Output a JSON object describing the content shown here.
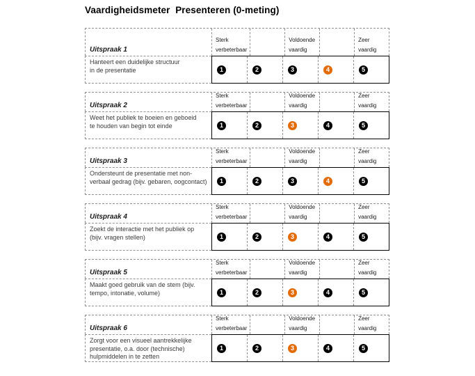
{
  "title": "Vaardigheidsmeter  Presenteren (0-meting)",
  "scale": {
    "headers": [
      "Sterk\nverbeterbaar",
      "",
      "Voldoende\nvaardig",
      "",
      "Zeer\nvaardig"
    ],
    "values": [
      1,
      2,
      3,
      4,
      5
    ]
  },
  "colors": {
    "selected": "#E36C0A",
    "circle": "#000000",
    "dashed_border": "#909090",
    "solid_border": "#000000",
    "text": "#3A3A3A",
    "title_text": "#000000"
  },
  "blocks": [
    {
      "label": "Uitspraak 1",
      "statement": "Hanteert een duidelijke structuur\nin de presentatie",
      "selected": 4
    },
    {
      "label": "Uitspraak 2",
      "statement": "Weet het publiek te boeien en geboeid\nte houden van begin tot einde",
      "selected": 3
    },
    {
      "label": "Uitspraak 3",
      "statement": "Ondersteunt de presentatie met non-\nverbaal gedrag (bijv. gebaren, oogcontact)",
      "selected": 4
    },
    {
      "label": "Uitspraak 4",
      "statement": "Zoekt de interactie met het publiek op\n(bijv. vragen stellen)",
      "selected": 3
    },
    {
      "label": "Uitspraak 5",
      "statement": "Maakt goed gebruik van de stem (bijv.\ntempo, intonatie, volume)",
      "selected": 3
    },
    {
      "label": "Uitspraak 6",
      "statement": "Zorgt voor een visueel aantrekkelijke\npresentatie, o.a. door (technische)\nhulpmiddelen in te zetten",
      "selected": 3
    }
  ]
}
